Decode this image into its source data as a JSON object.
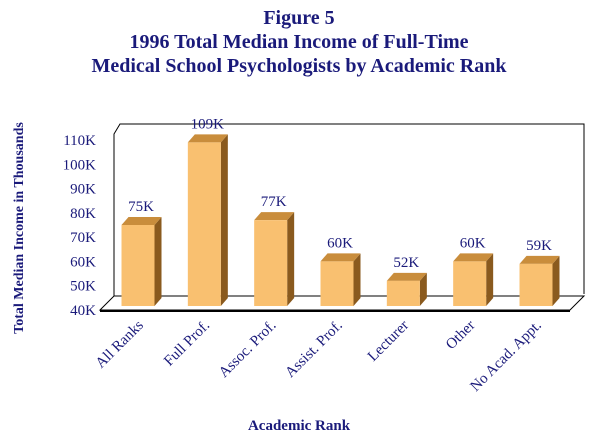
{
  "title": {
    "line1": "Figure 5",
    "line2": "1996 Total Median Income of Full-Time",
    "line3": "Medical School Psychologists by Academic Rank"
  },
  "chart_data": {
    "type": "bar",
    "title": "Figure 5 1996 Total Median Income of Full-Time Medical School Psychologists by Academic Rank",
    "xlabel": "Academic Rank",
    "ylabel": "Total Median Income in Thousands",
    "categories": [
      "All Ranks",
      "Full Prof.",
      "Assoc. Prof.",
      "Assist. Prof.",
      "Lecturer",
      "Other",
      "No Acad. Appt."
    ],
    "values": [
      75,
      109,
      77,
      60,
      52,
      60,
      59
    ],
    "data_labels": [
      "75K",
      "109K",
      "77K",
      "60K",
      "52K",
      "60K",
      "59K"
    ],
    "y_ticks": [
      "40K",
      "50K",
      "60K",
      "70K",
      "80K",
      "90K",
      "100K",
      "110K"
    ],
    "ylim": [
      40,
      110
    ],
    "grid": false,
    "bar_color": "#f9c070",
    "bar_side_color": "#8a5a1e",
    "bar_top_color": "#c98d3c"
  }
}
